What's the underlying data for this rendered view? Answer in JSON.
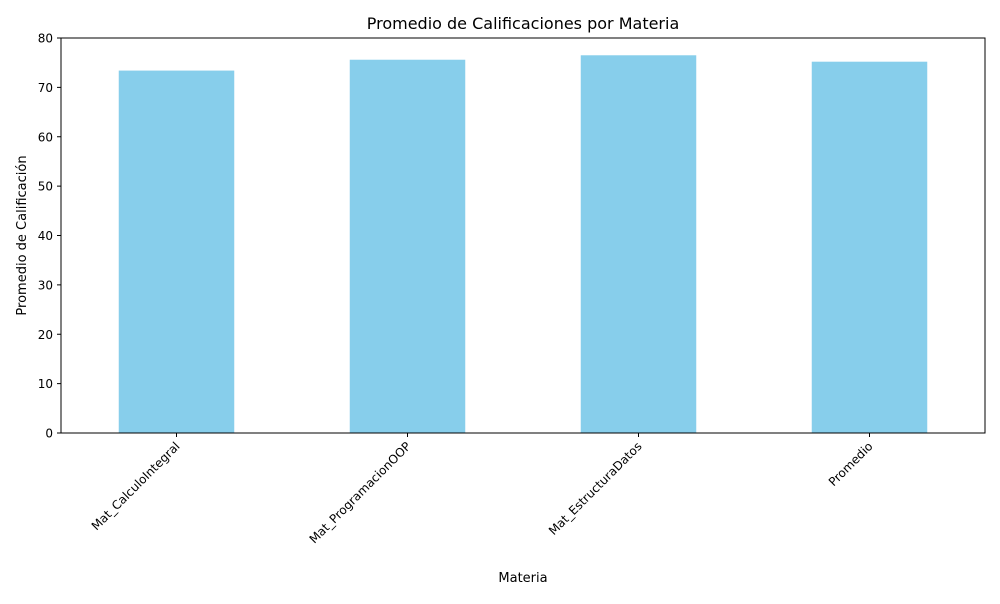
{
  "chart_data": {
    "type": "bar",
    "title": "Promedio de Calificaciones por Materia",
    "xlabel": "Materia",
    "ylabel": "Promedio de Calificación",
    "categories": [
      "Mat_CalculoIntegral",
      "Mat_ProgramacionOOP",
      "Mat_EstructuraDatos",
      "Promedio"
    ],
    "values": [
      73.4,
      75.6,
      76.5,
      75.2
    ],
    "ylim": [
      0,
      80
    ],
    "yticks": [
      0,
      10,
      20,
      30,
      40,
      50,
      60,
      70,
      80
    ],
    "grid": false,
    "bar_color": "#87CEEB"
  }
}
